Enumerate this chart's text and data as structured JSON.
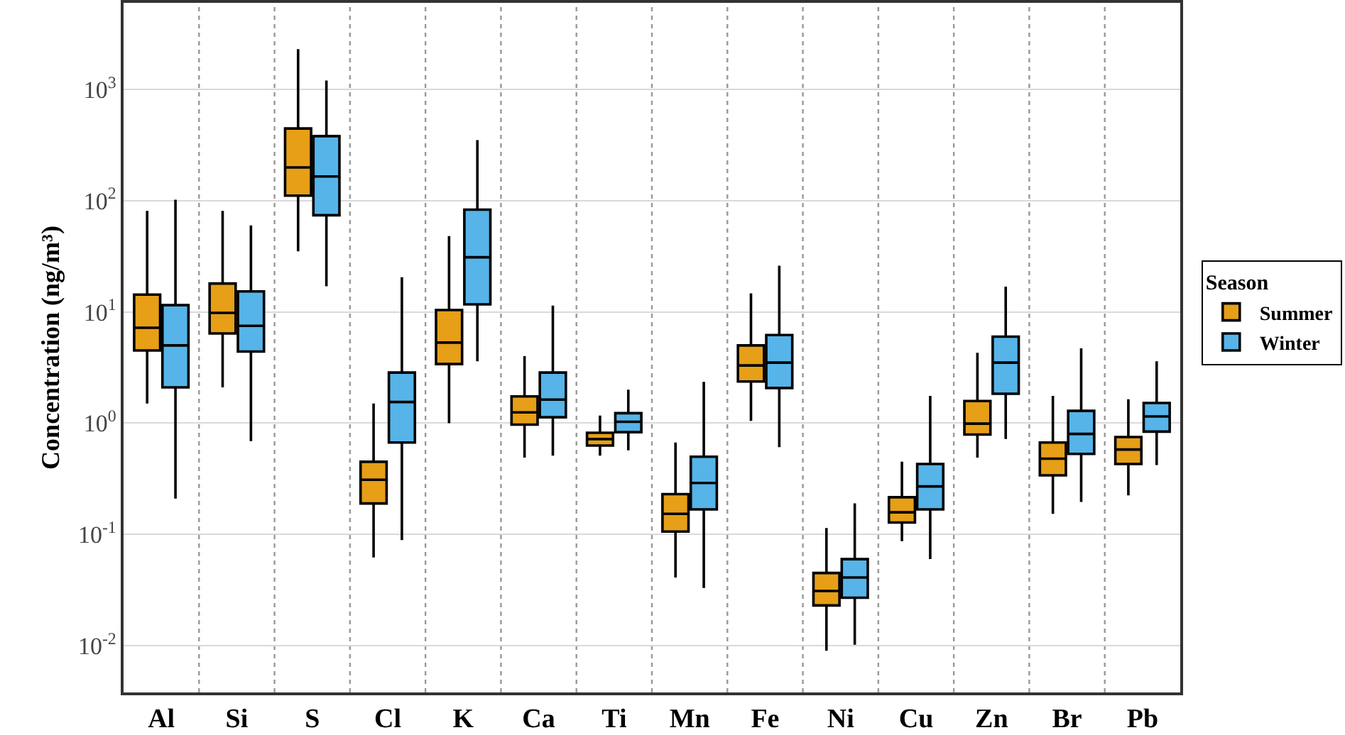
{
  "chart_data": {
    "type": "box",
    "ylabel": "Concentration (ng/m³)",
    "legend_title": "Season",
    "categories": [
      "Al",
      "Si",
      "S",
      "Cl",
      "K",
      "Ca",
      "Ti",
      "Mn",
      "Fe",
      "Ni",
      "Cu",
      "Zn",
      "Br",
      "Pb"
    ],
    "series": [
      {
        "name": "Summer",
        "color": "#e69f17",
        "boxes": [
          {
            "low": 1.5,
            "q1": 4.5,
            "median": 7.2,
            "q3": 14.3,
            "high": 81
          },
          {
            "low": 2.1,
            "q1": 6.4,
            "median": 9.8,
            "q3": 18,
            "high": 81
          },
          {
            "low": 35,
            "q1": 111,
            "median": 199,
            "q3": 445,
            "high": 2300
          },
          {
            "low": 0.062,
            "q1": 0.19,
            "median": 0.31,
            "q3": 0.45,
            "high": 1.5
          },
          {
            "low": 1.0,
            "q1": 3.4,
            "median": 5.3,
            "q3": 10.4,
            "high": 48
          },
          {
            "low": 0.49,
            "q1": 0.97,
            "median": 1.25,
            "q3": 1.74,
            "high": 4.0
          },
          {
            "low": 0.51,
            "q1": 0.63,
            "median": 0.72,
            "q3": 0.82,
            "high": 1.17
          },
          {
            "low": 0.041,
            "q1": 0.106,
            "median": 0.153,
            "q3": 0.23,
            "high": 0.67
          },
          {
            "low": 1.05,
            "q1": 2.37,
            "median": 3.3,
            "q3": 5.0,
            "high": 14.7
          },
          {
            "low": 0.009,
            "q1": 0.023,
            "median": 0.031,
            "q3": 0.045,
            "high": 0.114
          },
          {
            "low": 0.087,
            "q1": 0.128,
            "median": 0.158,
            "q3": 0.216,
            "high": 0.45
          },
          {
            "low": 0.49,
            "q1": 0.79,
            "median": 0.99,
            "q3": 1.58,
            "high": 4.3
          },
          {
            "low": 0.153,
            "q1": 0.34,
            "median": 0.48,
            "q3": 0.67,
            "high": 1.76
          },
          {
            "low": 0.224,
            "q1": 0.43,
            "median": 0.58,
            "q3": 0.75,
            "high": 1.64
          }
        ]
      },
      {
        "name": "Winter",
        "color": "#56b4e9",
        "boxes": [
          {
            "low": 0.21,
            "q1": 2.1,
            "median": 5.0,
            "q3": 11.5,
            "high": 102
          },
          {
            "low": 0.69,
            "q1": 4.4,
            "median": 7.5,
            "q3": 15.3,
            "high": 60
          },
          {
            "low": 17,
            "q1": 74,
            "median": 165,
            "q3": 380,
            "high": 1200
          },
          {
            "low": 0.089,
            "q1": 0.67,
            "median": 1.55,
            "q3": 2.85,
            "high": 20.5
          },
          {
            "low": 3.6,
            "q1": 11.7,
            "median": 31,
            "q3": 83,
            "high": 350
          },
          {
            "low": 0.51,
            "q1": 1.13,
            "median": 1.63,
            "q3": 2.85,
            "high": 11.4
          },
          {
            "low": 0.57,
            "q1": 0.83,
            "median": 1.03,
            "q3": 1.23,
            "high": 2.0
          },
          {
            "low": 0.033,
            "q1": 0.168,
            "median": 0.29,
            "q3": 0.5,
            "high": 2.35
          },
          {
            "low": 0.61,
            "q1": 2.07,
            "median": 3.5,
            "q3": 6.2,
            "high": 26
          },
          {
            "low": 0.0102,
            "q1": 0.027,
            "median": 0.041,
            "q3": 0.06,
            "high": 0.19
          },
          {
            "low": 0.06,
            "q1": 0.168,
            "median": 0.27,
            "q3": 0.43,
            "high": 1.76
          },
          {
            "low": 0.72,
            "q1": 1.84,
            "median": 3.5,
            "q3": 6.0,
            "high": 16.9
          },
          {
            "low": 0.196,
            "q1": 0.53,
            "median": 0.8,
            "q3": 1.29,
            "high": 4.7
          },
          {
            "low": 0.42,
            "q1": 0.84,
            "median": 1.15,
            "q3": 1.52,
            "high": 3.6
          }
        ]
      }
    ],
    "log": "y",
    "ylim": [
      0.0038,
      6000
    ],
    "yticks": [
      {
        "value": 0.01,
        "label": "10$^{-2}$"
      },
      {
        "value": 0.1,
        "label": "10$^{-1}$"
      },
      {
        "value": 1,
        "label": "10$^{0}$"
      },
      {
        "value": 10,
        "label": "10$^{1}$"
      },
      {
        "value": 100,
        "label": "10$^{2}$"
      },
      {
        "value": 1000,
        "label": "10$^{3}$"
      }
    ],
    "grid": true,
    "legend": "right"
  }
}
